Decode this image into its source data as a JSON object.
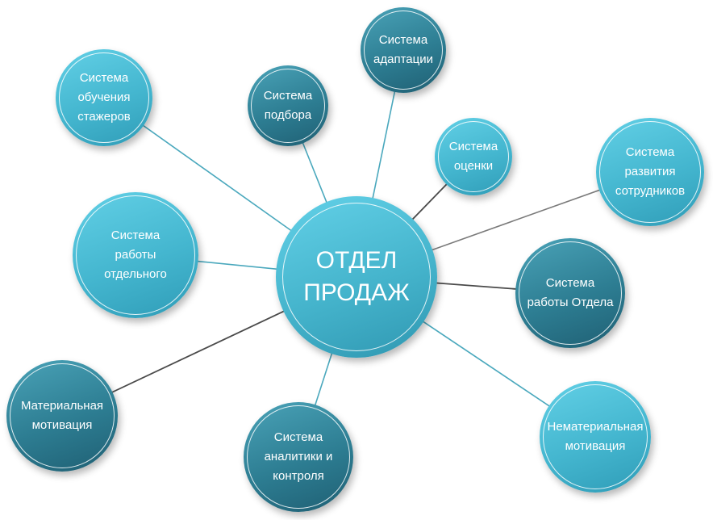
{
  "center": {
    "label": "ОТДЕЛ\nПРОДАЖ"
  },
  "nodes": [
    {
      "id": "training-interns",
      "label": "Система\nобучения\nстажеров"
    },
    {
      "id": "recruitment",
      "label": "Система\nподбора"
    },
    {
      "id": "adaptation",
      "label": "Система\nадаптации"
    },
    {
      "id": "evaluation",
      "label": "Система\nоценки"
    },
    {
      "id": "employee-development",
      "label": "Система\nразвития\nсотрудников"
    },
    {
      "id": "individual-work",
      "label": "Система\nработы\nотдельного"
    },
    {
      "id": "department-work",
      "label": "Система\nработы Отдела"
    },
    {
      "id": "material-motivation",
      "label": "Материальная\nмотивация"
    },
    {
      "id": "analytics-control",
      "label": "Система\nаналитики и\nконтроля"
    },
    {
      "id": "non-material-motivation",
      "label": "Нематериальная\nмотивация"
    }
  ],
  "colors": {
    "light_node": "#45b4cc",
    "dark_node": "#2d7d92",
    "link_teal": "#4aa8bd",
    "link_dark": "#4a4a4a",
    "link_gray": "#7a7a7a"
  }
}
